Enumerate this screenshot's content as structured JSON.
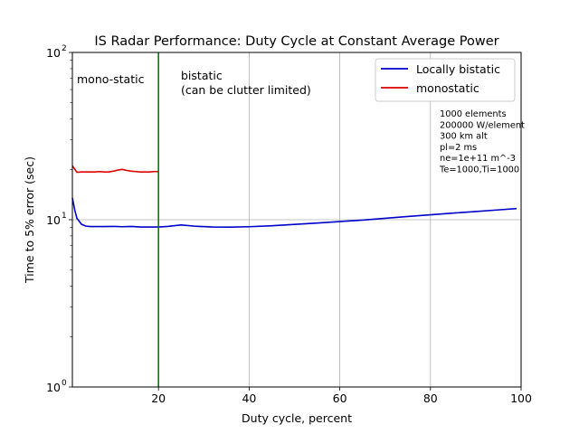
{
  "chart_data": {
    "type": "line",
    "title": "IS Radar Performance: Duty Cycle at Constant Average Power",
    "xlabel": "Duty cycle, percent",
    "ylabel": "Time to 5% error (sec)",
    "xlim": [
      1,
      100
    ],
    "ylim": [
      1,
      100
    ],
    "yscale": "log",
    "grid": "vertical lines at x ticks, one horizontal line at y=10",
    "x_ticks": [
      20,
      40,
      60,
      80,
      100
    ],
    "x_tick_labels": [
      "20",
      "40",
      "60",
      "80",
      "100"
    ],
    "y_ticks": [
      1,
      10,
      100
    ],
    "y_tick_labels": [
      "10",
      "10",
      "10"
    ],
    "y_tick_exponents": [
      "0",
      "1",
      "2"
    ],
    "legend_position": "top-right",
    "series": [
      {
        "name": "Locally bistatic",
        "color": "#0000cc",
        "points": [
          [
            1,
            13.5
          ],
          [
            1.5,
            11.5
          ],
          [
            2,
            10.2
          ],
          [
            3,
            9.4
          ],
          [
            4,
            9.15
          ],
          [
            5,
            9.1
          ],
          [
            6,
            9.1
          ],
          [
            8,
            9.1
          ],
          [
            10,
            9.12
          ],
          [
            12,
            9.08
          ],
          [
            14,
            9.12
          ],
          [
            16,
            9.05
          ],
          [
            18,
            9.05
          ],
          [
            20,
            9.05
          ],
          [
            22,
            9.12
          ],
          [
            25,
            9.3
          ],
          [
            28,
            9.15
          ],
          [
            32,
            9.05
          ],
          [
            36,
            9.03
          ],
          [
            40,
            9.08
          ],
          [
            45,
            9.2
          ],
          [
            50,
            9.38
          ],
          [
            55,
            9.55
          ],
          [
            60,
            9.75
          ],
          [
            65,
            9.95
          ],
          [
            70,
            10.2
          ],
          [
            75,
            10.45
          ],
          [
            80,
            10.7
          ],
          [
            85,
            10.95
          ],
          [
            90,
            11.2
          ],
          [
            95,
            11.45
          ],
          [
            99,
            11.65
          ]
        ]
      },
      {
        "name": "monostatic",
        "color": "#dd0000",
        "points": [
          [
            1,
            21
          ],
          [
            2,
            19.2
          ],
          [
            3,
            19.3
          ],
          [
            4,
            19.3
          ],
          [
            5,
            19.3
          ],
          [
            6,
            19.3
          ],
          [
            7,
            19.4
          ],
          [
            8,
            19.3
          ],
          [
            9,
            19.3
          ],
          [
            10,
            19.5
          ],
          [
            11,
            19.8
          ],
          [
            12,
            20.0
          ],
          [
            13,
            19.7
          ],
          [
            14,
            19.5
          ],
          [
            15,
            19.4
          ],
          [
            16,
            19.3
          ],
          [
            17,
            19.3
          ],
          [
            18,
            19.3
          ],
          [
            19,
            19.4
          ],
          [
            20,
            19.4
          ]
        ]
      }
    ],
    "vline": {
      "x": 20,
      "color": "#008000"
    },
    "annotations": {
      "left": "mono-static",
      "right_line1": "bistatic",
      "right_line2": "(can be clutter limited)",
      "params": [
        "1000 elements",
        "200000 W/element",
        "300 km alt",
        "pl=2 ms",
        "ne=1e+11 m^-3",
        "Te=1000,Ti=1000"
      ]
    }
  }
}
